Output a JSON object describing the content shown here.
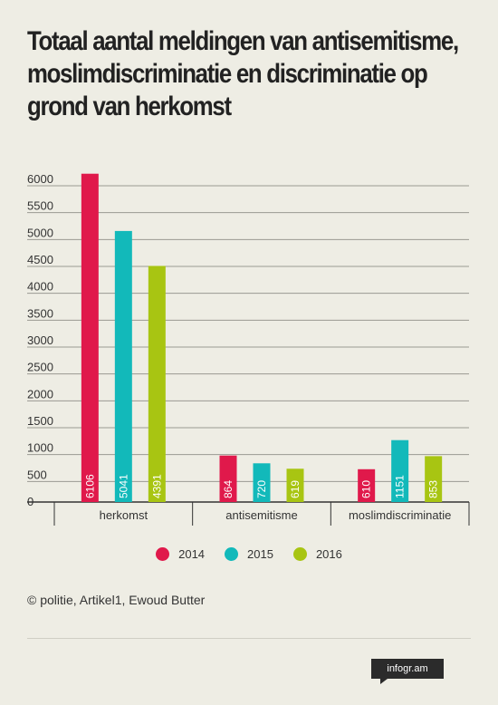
{
  "header": {
    "title": "Totaal aantal meldingen van antisemitisme, moslimdiscriminatie en discriminatie op grond van herkomst"
  },
  "chart_data": {
    "type": "bar",
    "categories": [
      "herkomst",
      "antisemitisme",
      "moslimdiscriminatie"
    ],
    "series": [
      {
        "name": "2014",
        "color": "#e0194b",
        "values": [
          6106,
          864,
          610
        ]
      },
      {
        "name": "2015",
        "color": "#12b9ba",
        "values": [
          5041,
          720,
          1151
        ]
      },
      {
        "name": "2016",
        "color": "#a8c512",
        "values": [
          4391,
          619,
          853
        ]
      }
    ],
    "ylim": [
      0,
      6000
    ],
    "yticks": [
      "0",
      "500",
      "1000",
      "1500",
      "2000",
      "2500",
      "3000",
      "3500",
      "4000",
      "4500",
      "5000",
      "5500",
      "6000"
    ],
    "grid": true,
    "legend_position": "bottom"
  },
  "source": "© politie, Artikel1, Ewoud Butter",
  "brand": "infogr.am"
}
